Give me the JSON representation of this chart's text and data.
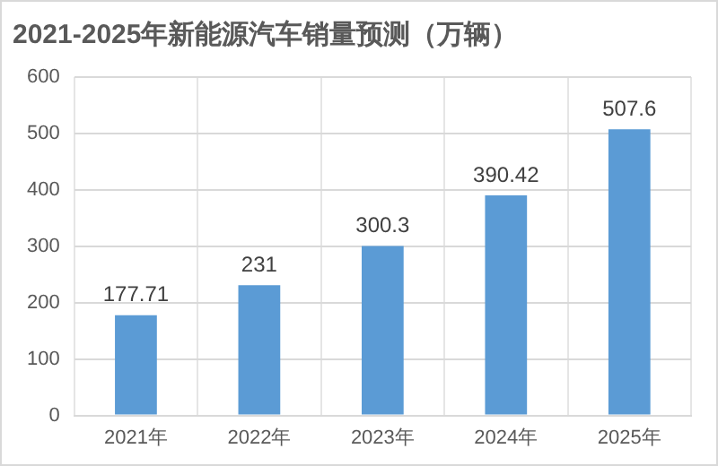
{
  "chart_data": {
    "type": "bar",
    "title": "2021-2025年新能源汽车销量预测（万辆）",
    "categories": [
      "2021年",
      "2022年",
      "2023年",
      "2024年",
      "2025年"
    ],
    "values": [
      177.71,
      231,
      300.3,
      390.42,
      507.6
    ],
    "color": "#5b9bd5",
    "ylim": [
      0,
      600
    ],
    "yticks": [
      0,
      100,
      200,
      300,
      400,
      500,
      600
    ],
    "grid": true,
    "data_labels": true
  }
}
